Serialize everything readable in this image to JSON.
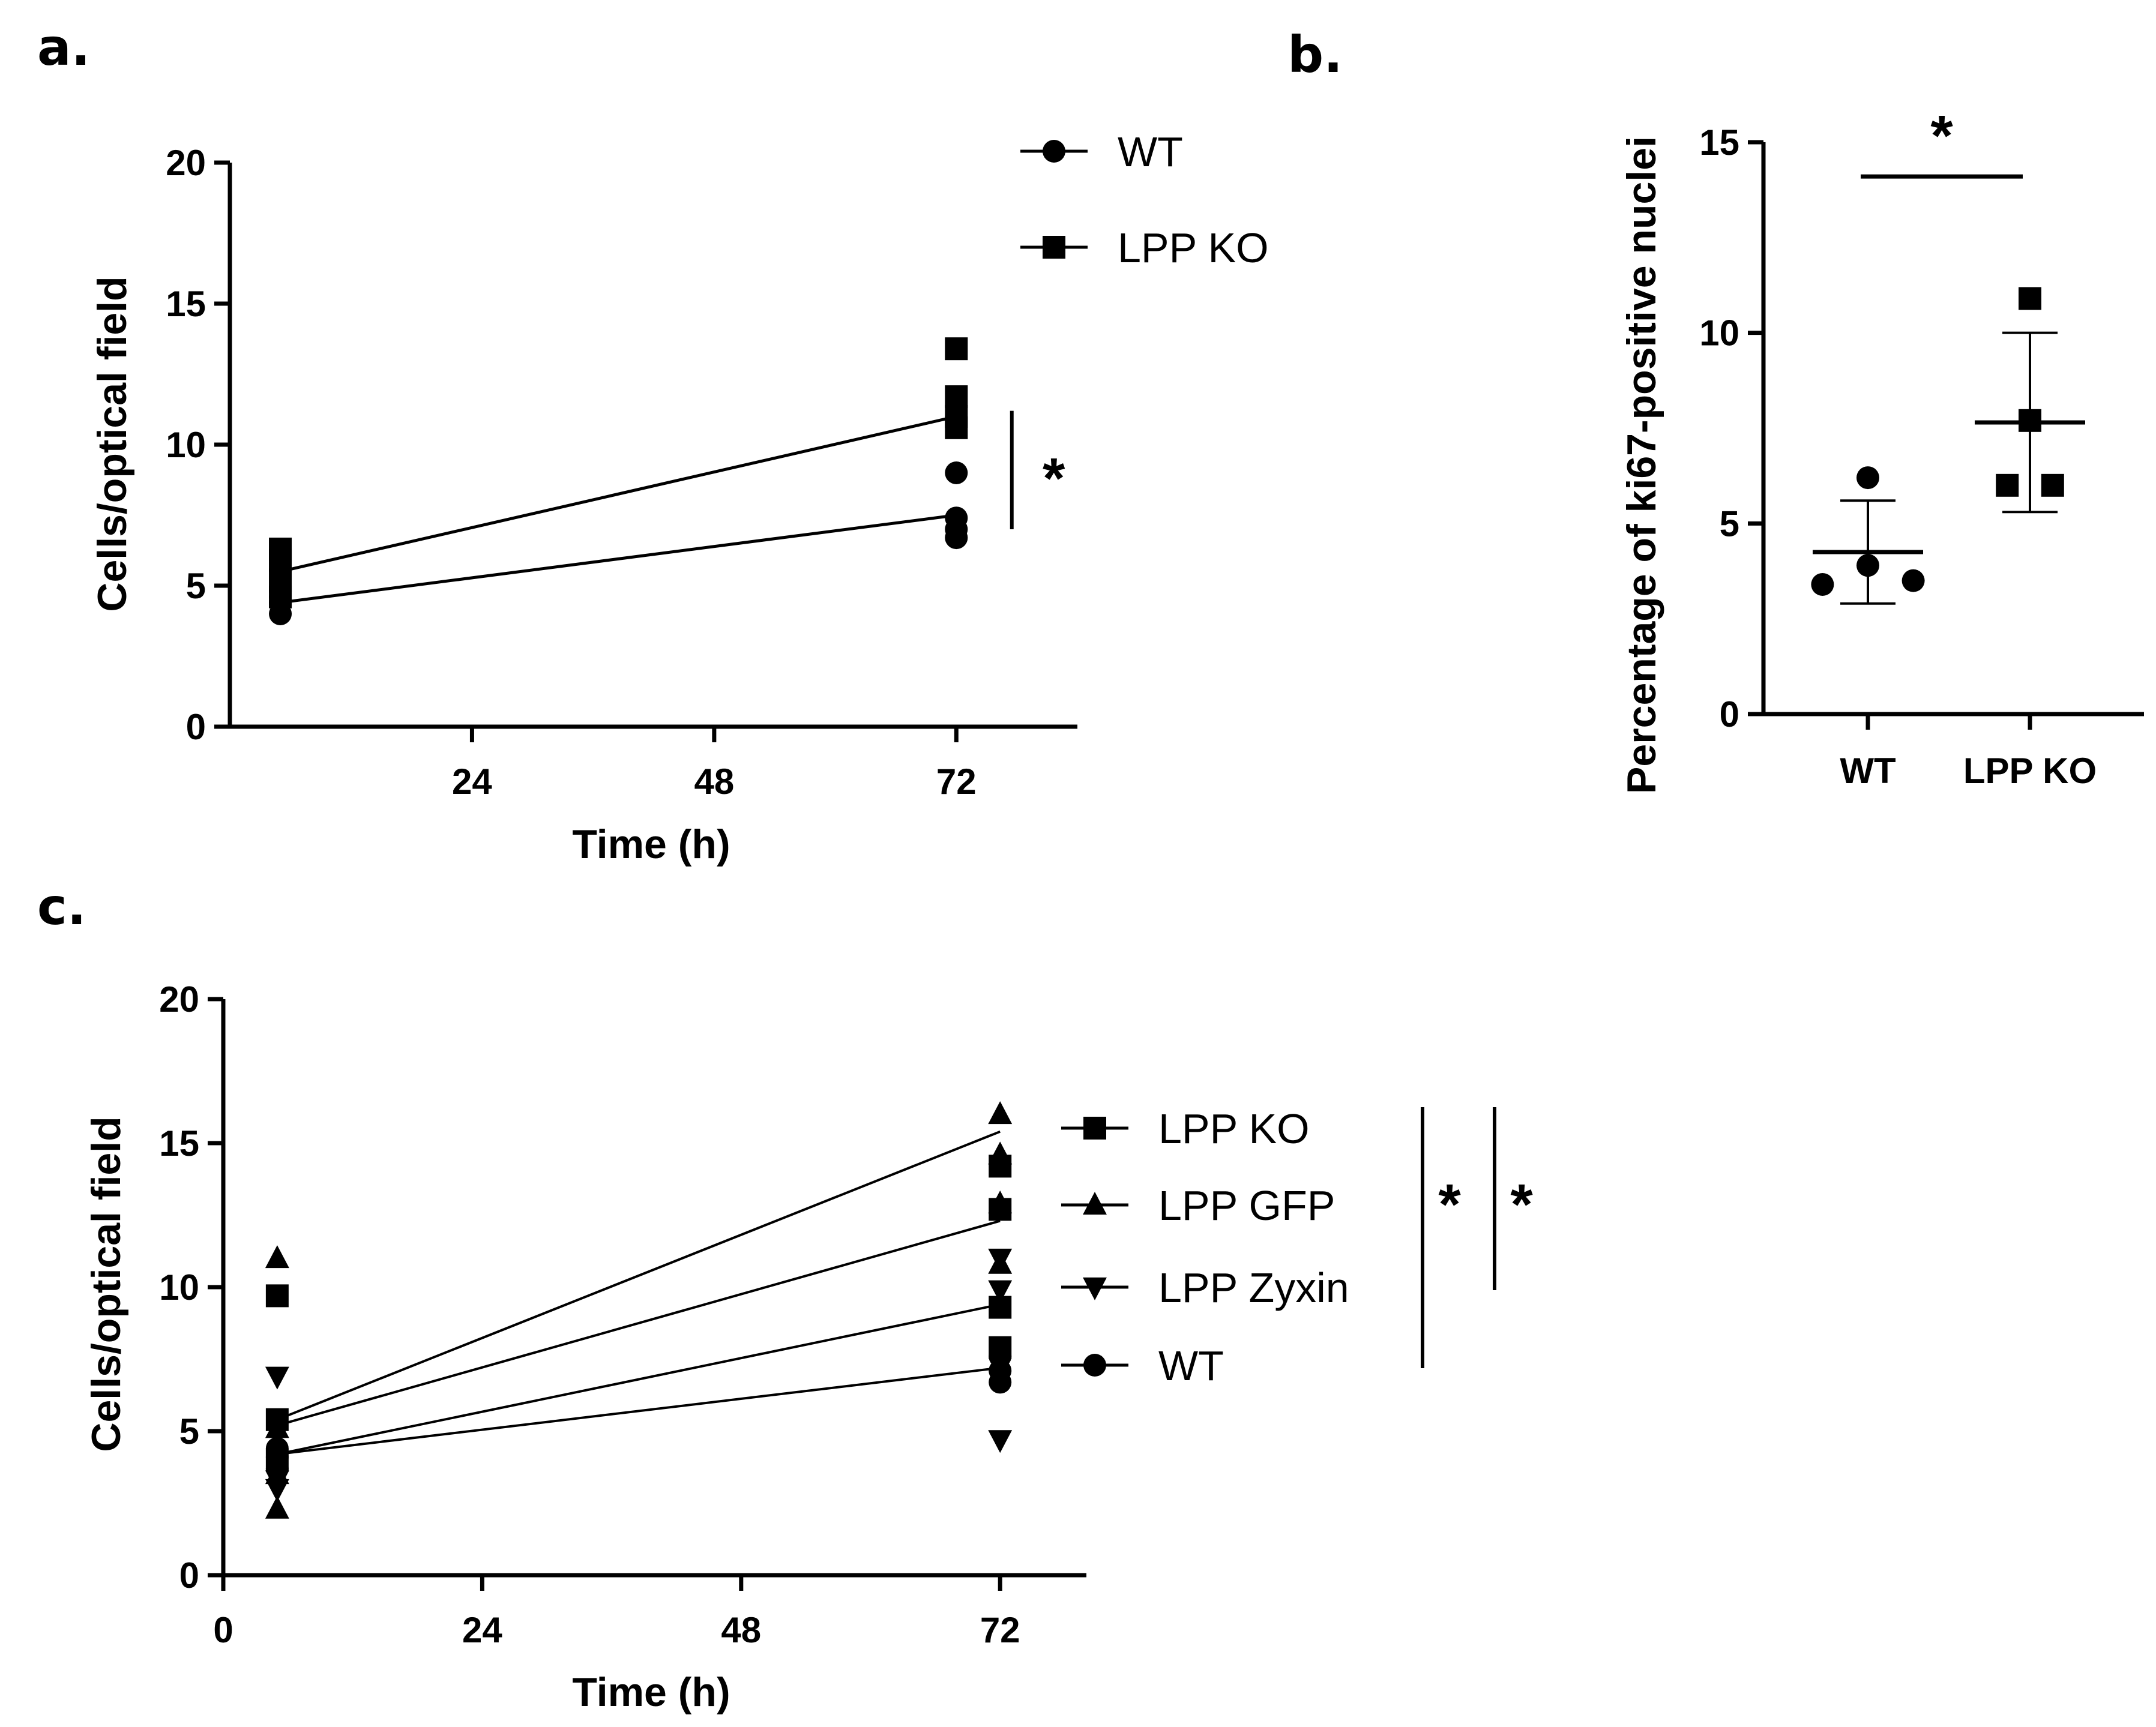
{
  "chart_data": [
    {
      "panel": "a.",
      "type": "line",
      "title": "",
      "xlabel": "Time  (h)",
      "ylabel": "Cells/optical field",
      "xlim": [
        0,
        84
      ],
      "ylim": [
        0,
        20
      ],
      "xticks": [
        24,
        48,
        72
      ],
      "yticks": [
        0,
        5,
        10,
        15,
        20
      ],
      "legend_position": "top-right",
      "series": [
        {
          "name": "WT",
          "marker": "circle",
          "mean": [
            {
              "x": 5,
              "y": 4.4
            },
            {
              "x": 72,
              "y": 7.5
            }
          ],
          "points": [
            {
              "x": 5,
              "y": 4.0
            },
            {
              "x": 5,
              "y": 4.4
            },
            {
              "x": 5,
              "y": 4.8
            },
            {
              "x": 5,
              "y": 4.6
            },
            {
              "x": 72,
              "y": 6.7
            },
            {
              "x": 72,
              "y": 7.0
            },
            {
              "x": 72,
              "y": 7.4
            },
            {
              "x": 72,
              "y": 9.0
            }
          ]
        },
        {
          "name": "LPP KO",
          "marker": "square",
          "mean": [
            {
              "x": 5,
              "y": 5.5
            },
            {
              "x": 72,
              "y": 11.0
            }
          ],
          "points": [
            {
              "x": 5,
              "y": 4.6
            },
            {
              "x": 5,
              "y": 5.2
            },
            {
              "x": 5,
              "y": 5.9
            },
            {
              "x": 5,
              "y": 6.3
            },
            {
              "x": 72,
              "y": 10.6
            },
            {
              "x": 72,
              "y": 11.0
            },
            {
              "x": 72,
              "y": 11.7
            },
            {
              "x": 72,
              "y": 13.4
            }
          ]
        }
      ],
      "annotations": [
        {
          "type": "significance-bar",
          "x": 77.5,
          "y_from": 7.0,
          "y_to": 11.2,
          "label": "*"
        }
      ]
    },
    {
      "panel": "b.",
      "type": "scatter",
      "title": "",
      "xlabel": "",
      "ylabel": "Percentage of ki67-positive nuclei",
      "categories": [
        "WT",
        "LPP KO"
      ],
      "ylim": [
        0,
        15
      ],
      "yticks": [
        0,
        5,
        10,
        15
      ],
      "series": [
        {
          "name": "WT",
          "marker": "circle",
          "points": [
            {
              "dx": -0.28,
              "y": 3.4
            },
            {
              "dx": 0,
              "y": 3.9
            },
            {
              "dx": 0.28,
              "y": 3.5
            },
            {
              "dx": 0,
              "y": 6.2
            }
          ],
          "mean": 4.25,
          "sd_low": 2.9,
          "sd_high": 5.6
        },
        {
          "name": "LPP KO",
          "marker": "square",
          "points": [
            {
              "dx": -0.14,
              "y": 6.0
            },
            {
              "dx": 0.14,
              "y": 6.0
            },
            {
              "dx": 0,
              "y": 7.7
            },
            {
              "dx": 0,
              "y": 10.9
            }
          ],
          "mean": 7.65,
          "sd_low": 5.3,
          "sd_high": 10.0
        }
      ],
      "annotations": [
        {
          "type": "significance-bar",
          "y": 14.1,
          "label": "*"
        }
      ]
    },
    {
      "panel": "c.",
      "type": "line",
      "title": "",
      "xlabel": "Time  (h)",
      "ylabel": "Cells/optical field",
      "xlim": [
        0,
        80
      ],
      "ylim": [
        0,
        20
      ],
      "xticks": [
        0,
        24,
        48,
        72
      ],
      "yticks": [
        0,
        5,
        10,
        15,
        20
      ],
      "legend_position": "right",
      "series": [
        {
          "name": "LPP KO",
          "marker": "square",
          "mean": [
            {
              "x": 5,
              "y": 5.2
            },
            {
              "x": 72,
              "y": 12.3
            }
          ],
          "points": [
            {
              "x": 5,
              "y": 4.0
            },
            {
              "x": 5,
              "y": 5.4
            },
            {
              "x": 5,
              "y": 9.7
            },
            {
              "x": 72,
              "y": 7.9
            },
            {
              "x": 72,
              "y": 9.3
            },
            {
              "x": 72,
              "y": 12.7
            },
            {
              "x": 72,
              "y": 14.2
            }
          ]
        },
        {
          "name": "LPP GFP",
          "marker": "triangle-up",
          "mean": [
            {
              "x": 5,
              "y": 5.4
            },
            {
              "x": 72,
              "y": 15.4
            }
          ],
          "points": [
            {
              "x": 5,
              "y": 2.3
            },
            {
              "x": 5,
              "y": 3.5
            },
            {
              "x": 5,
              "y": 5.1
            },
            {
              "x": 5,
              "y": 11.0
            },
            {
              "x": 72,
              "y": 10.8
            },
            {
              "x": 72,
              "y": 12.9
            },
            {
              "x": 72,
              "y": 14.6
            },
            {
              "x": 72,
              "y": 16.0
            }
          ]
        },
        {
          "name": "LPP Zyxin",
          "marker": "triangle-down",
          "mean": [
            {
              "x": 5,
              "y": 4.2
            },
            {
              "x": 72,
              "y": 9.4
            }
          ],
          "points": [
            {
              "x": 5,
              "y": 3.0
            },
            {
              "x": 5,
              "y": 3.3
            },
            {
              "x": 5,
              "y": 6.9
            },
            {
              "x": 72,
              "y": 4.7
            },
            {
              "x": 72,
              "y": 9.9
            },
            {
              "x": 72,
              "y": 11.0
            }
          ]
        },
        {
          "name": "WT",
          "marker": "circle",
          "mean": [
            {
              "x": 5,
              "y": 4.2
            },
            {
              "x": 72,
              "y": 7.2
            }
          ],
          "points": [
            {
              "x": 5,
              "y": 3.7
            },
            {
              "x": 5,
              "y": 4.1
            },
            {
              "x": 5,
              "y": 4.4
            },
            {
              "x": 72,
              "y": 6.7
            },
            {
              "x": 72,
              "y": 7.1
            },
            {
              "x": 72,
              "y": 7.6
            }
          ]
        }
      ],
      "annotations": [
        {
          "type": "significance-bar",
          "label": "*",
          "from": "LPP KO",
          "to": "WT"
        },
        {
          "type": "significance-bar",
          "label": "*",
          "from": "LPP KO",
          "to": "LPP Zyxin"
        }
      ]
    }
  ]
}
